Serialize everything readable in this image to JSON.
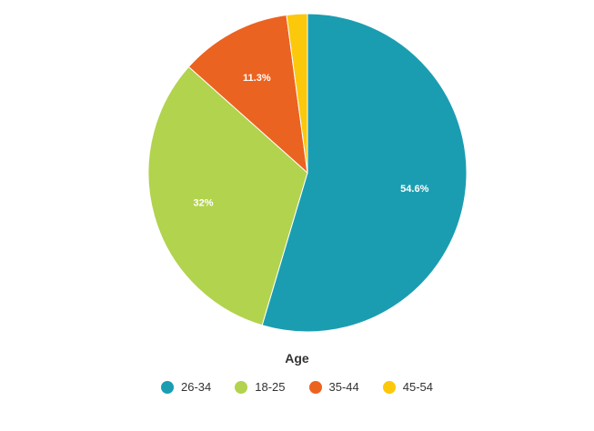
{
  "chart_data": {
    "type": "pie",
    "legend_title": "Age",
    "legend_position": "bottom",
    "slices": [
      {
        "label": "26-34",
        "value": 54.6,
        "display": "54.6%",
        "color": "#1b9db1"
      },
      {
        "label": "18-25",
        "value": 32,
        "display": "32%",
        "color": "#b2d34d"
      },
      {
        "label": "35-44",
        "value": 11.3,
        "display": "11.3%",
        "color": "#eb6320"
      },
      {
        "label": "45-54",
        "value": 2.1,
        "display": "",
        "color": "#fcc80c"
      }
    ]
  }
}
